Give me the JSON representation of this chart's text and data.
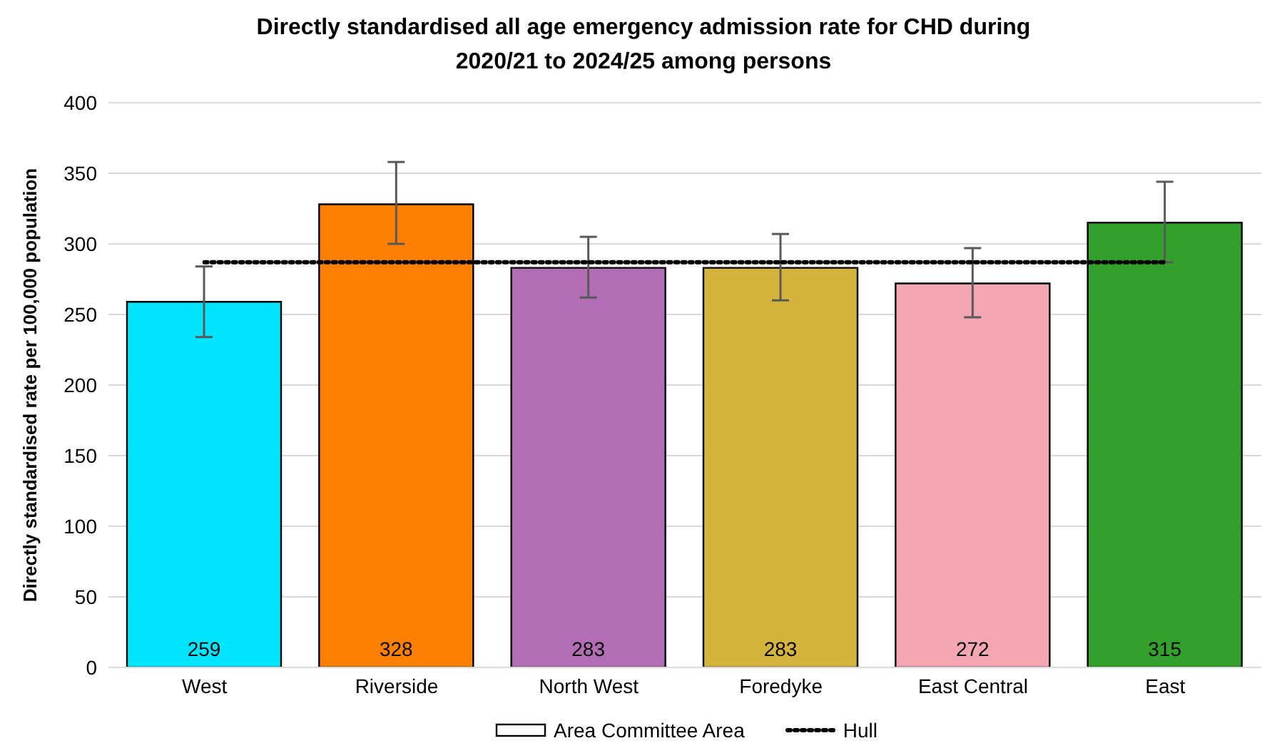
{
  "chart_data": {
    "type": "bar",
    "title": "Directly standardised all age emergency admission rate for CHD during 2020/21 to 2024/25 among persons",
    "ylabel": "Directly standardised rate per 100,000 population",
    "categories": [
      "West",
      "Riverside",
      "North West",
      "Foredyke",
      "East Central",
      "East"
    ],
    "series": [
      {
        "name": "Area Committee Area",
        "color": "#ffffff",
        "colors": [
          "#00e5ff",
          "#ff8000",
          "#b36db5",
          "#d4b43c",
          "#f4a7b3",
          "#33a02c"
        ],
        "values": [
          259,
          328,
          283,
          283,
          272,
          315
        ],
        "value_labels": [
          "259",
          "328",
          "283",
          "283",
          "272",
          "315"
        ],
        "errors": [
          [
            234,
            284
          ],
          [
            300,
            358
          ],
          [
            262,
            305
          ],
          [
            260,
            307
          ],
          [
            248,
            297
          ],
          [
            287,
            344
          ]
        ]
      },
      {
        "type": "line",
        "name": "Hull",
        "color": "#000000",
        "values": [
          287,
          287,
          287,
          287,
          287,
          287
        ],
        "line_style": "dotted"
      }
    ],
    "ylim": [
      0,
      400
    ],
    "yticks": [
      0,
      50,
      100,
      150,
      200,
      250,
      300,
      350,
      400
    ],
    "grid": "y",
    "legend": "bottom"
  }
}
